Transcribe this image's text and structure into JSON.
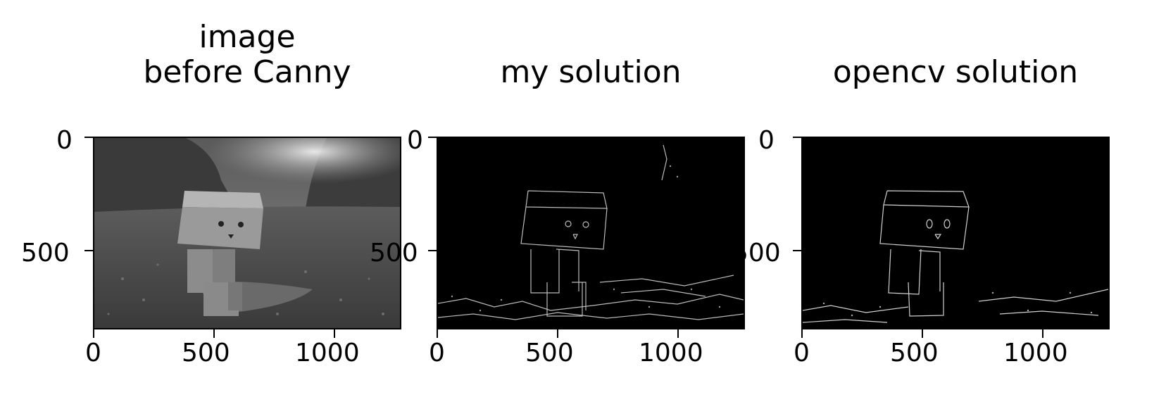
{
  "figure": {
    "panels": [
      {
        "id": "original",
        "title_line1": "image",
        "title_line2": "before Canny"
      },
      {
        "id": "mine",
        "title_line1": "",
        "title_line2": "my solution"
      },
      {
        "id": "opencv",
        "title_line1": "",
        "title_line2": "opencv solution"
      }
    ],
    "axes": {
      "x_ticks": [
        0,
        500,
        1000
      ],
      "y_ticks": [
        0,
        500
      ],
      "x_range": [
        0,
        1280
      ],
      "y_range": [
        0,
        800
      ]
    }
  }
}
